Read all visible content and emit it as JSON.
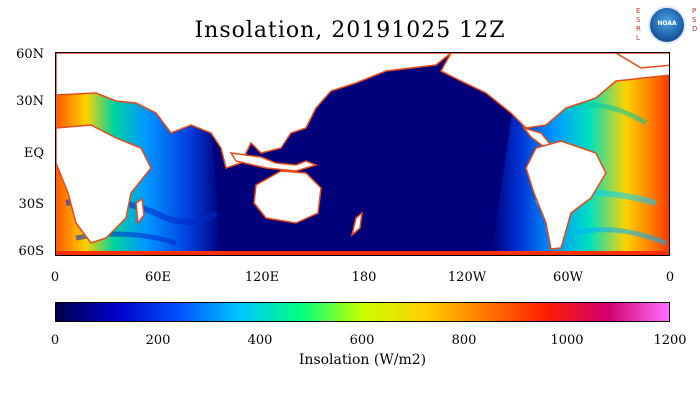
{
  "title": "Insolation, 20191025 12Z",
  "map": {
    "lat_labels": [
      "60N",
      "30N",
      "EQ",
      "30S",
      "60S"
    ],
    "lon_labels": [
      "0",
      "60E",
      "120E",
      "180",
      "120W",
      "60W",
      "0"
    ],
    "ocean_color_night": "#00007a",
    "land_color": "#ffffff",
    "coast_color": "#e84a1a"
  },
  "colorbar": {
    "ticks": [
      "0",
      "200",
      "400",
      "600",
      "800",
      "1000",
      "1200"
    ],
    "label": "Insolation (W/m2)",
    "range": [
      0,
      1200
    ],
    "colors": [
      "#00004a",
      "#0000c8",
      "#0050ff",
      "#00c8ff",
      "#00ff80",
      "#c8ff00",
      "#ffd200",
      "#ff7800",
      "#ff1e00",
      "#d2006e",
      "#ff6eff"
    ]
  },
  "logo": {
    "left_letters": [
      "E",
      "S",
      "R",
      "L"
    ],
    "right_letters": [
      "P",
      "S",
      "D"
    ],
    "emblem_text": "NOAA"
  }
}
